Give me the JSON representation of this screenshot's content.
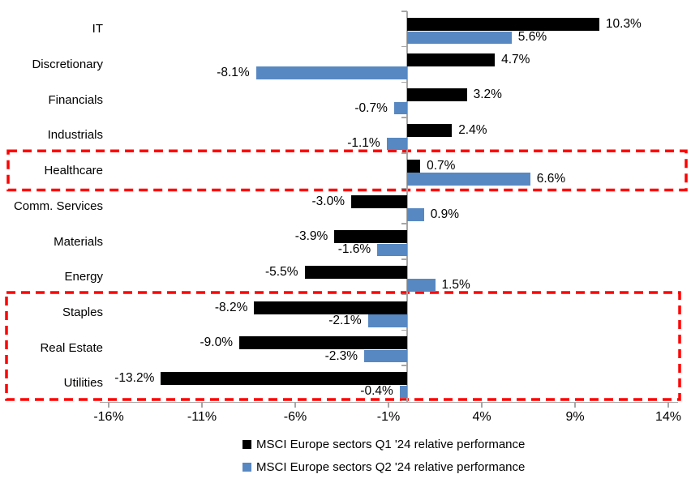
{
  "colors": {
    "q1_series": "#000000",
    "q2_series": "#5788C2",
    "axis": "#A6A6A6",
    "highlight_box": "#FF0000",
    "text": "#000000",
    "background": "#FFFFFF"
  },
  "chart_data": {
    "type": "bar",
    "orientation": "horizontal",
    "title": "",
    "categories": [
      "IT",
      "Discretionary",
      "Financials",
      "Industrials",
      "Healthcare",
      "Comm. Services",
      "Materials",
      "Energy",
      "Staples",
      "Real Estate",
      "Utilities"
    ],
    "series": [
      {
        "name": "MSCI Europe sectors Q1 '24 relative performance",
        "color": "#000000",
        "values": [
          10.3,
          4.7,
          3.2,
          2.4,
          0.7,
          -3.0,
          -3.9,
          -5.5,
          -8.2,
          -9.0,
          -13.2
        ]
      },
      {
        "name": "MSCI Europe sectors Q2 '24 relative performance",
        "color": "#5788C2",
        "values": [
          5.6,
          -8.1,
          -0.7,
          -1.1,
          6.6,
          0.9,
          -1.6,
          1.5,
          -2.1,
          -2.3,
          -0.4
        ]
      }
    ],
    "data_labels": true,
    "value_label_format": "one_decimal_percent",
    "x_ticks": [
      {
        "value": -16,
        "label": "-16%"
      },
      {
        "value": -11,
        "label": "-11%"
      },
      {
        "value": -6,
        "label": "-6%"
      },
      {
        "value": -1,
        "label": "-1%"
      },
      {
        "value": 4,
        "label": "4%"
      },
      {
        "value": 9,
        "label": "9%"
      },
      {
        "value": 14,
        "label": "14%"
      }
    ],
    "xlim": [
      -16,
      14
    ],
    "grid": false,
    "legend_position": "bottom-center",
    "highlight_boxes": [
      {
        "from_category": "Healthcare",
        "to_category": "Healthcare",
        "color": "#FF0000",
        "style": "dashed"
      },
      {
        "from_category": "Staples",
        "to_category": "Utilities",
        "color": "#FF0000",
        "style": "dashed"
      }
    ]
  }
}
